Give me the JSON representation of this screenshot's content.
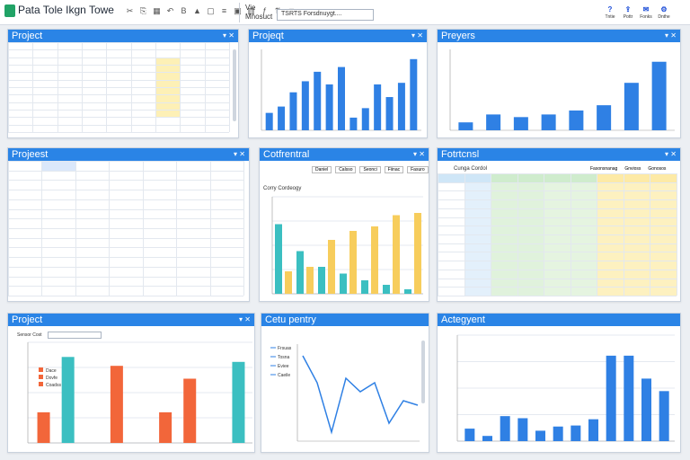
{
  "app": {
    "title": "Pata Tole Ikgn Towe"
  },
  "toolbar": {
    "view_label_1": "Vie",
    "view_label_2": "Mnosuct",
    "search_value": "TSRTS Forsdnuygt...."
  },
  "right_buttons": [
    {
      "icon": "help-icon",
      "label": "Tntie"
    },
    {
      "icon": "share-icon",
      "label": "Pottr"
    },
    {
      "icon": "comment-icon",
      "label": "Fonks"
    },
    {
      "icon": "settings-icon",
      "label": "Dnthe"
    }
  ],
  "panels": {
    "p1": {
      "title": "Project"
    },
    "p2": {
      "title": "Projeqt"
    },
    "p3": {
      "title": "Preyers"
    },
    "p4": {
      "title": "Projeest"
    },
    "p5": {
      "title": "Cotfrentral",
      "subtitle": "Corry Cordeogy",
      "tabs": [
        "Daniel",
        "Calsso",
        "Seonci",
        "Fiinac",
        "Fasuro"
      ]
    },
    "p6": {
      "title": "Fotrtcnsl",
      "subtitle": "Cunga Cordol",
      "tabs": [
        "Fasonsnanag",
        "Gnvioss",
        "Gonosos"
      ]
    },
    "p7": {
      "title": "Project",
      "filter": "Sensor Cost",
      "legend": [
        "Dace",
        "Dovfe",
        "Coadss"
      ]
    },
    "p8": {
      "title": "Cetu pentry",
      "legend": [
        "Frsuas",
        "Tosna",
        "Eviee",
        "Caeile"
      ]
    },
    "p9": {
      "title": "Actegyent"
    }
  },
  "chart_data": [
    {
      "type": "bar",
      "title": "Projeqt",
      "values": [
        22,
        30,
        48,
        62,
        74,
        58,
        80,
        16,
        28,
        58,
        42,
        60,
        90
      ]
    },
    {
      "type": "bar",
      "title": "Preyers",
      "values": [
        6,
        12,
        10,
        12,
        15,
        19,
        36,
        52
      ]
    },
    {
      "type": "bar",
      "title": "Cotfrentral",
      "series": [
        {
          "name": "teal",
          "values": [
            62,
            38,
            24,
            18,
            12,
            8,
            4
          ]
        },
        {
          "name": "yellow",
          "values": [
            20,
            24,
            48,
            56,
            60,
            70,
            72
          ]
        }
      ]
    },
    {
      "type": "bar",
      "title": "Project",
      "values": [
        31,
        87,
        0,
        78,
        0,
        31,
        65,
        0,
        82
      ]
    },
    {
      "type": "line",
      "title": "Cetu pentry",
      "values": [
        95,
        65,
        10,
        70,
        55,
        65,
        20,
        45,
        40
      ]
    },
    {
      "type": "bar",
      "title": "Actegyent",
      "values": [
        12,
        5,
        24,
        22,
        10,
        14,
        15,
        21,
        82,
        82,
        60,
        48
      ]
    }
  ],
  "colors": {
    "header": "#2a84e6",
    "bar": "#2f80e4",
    "teal": "#3bbfc1",
    "yellow": "#f7cd5c",
    "orange": "#f2663a"
  }
}
